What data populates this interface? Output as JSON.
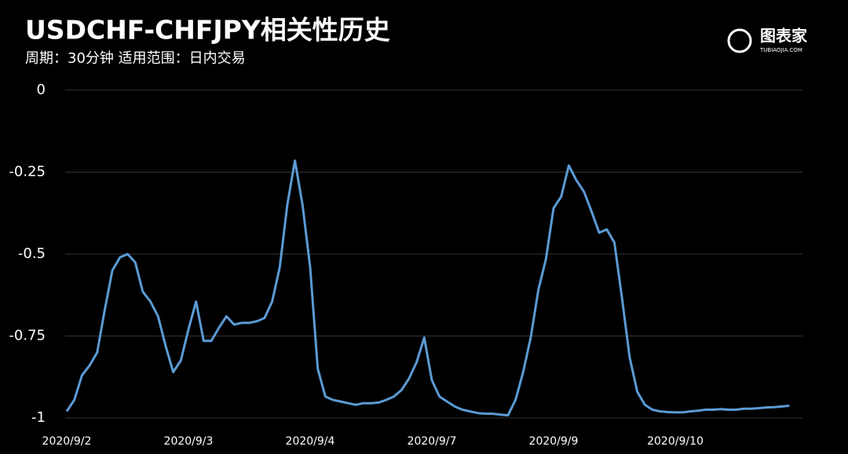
{
  "chart_data": {
    "type": "line",
    "title": "USDCHF-CHFJPY相关性历史",
    "subtitle": "周期：30分钟  适用范围：日内交易",
    "logo": "图表家",
    "logo_sub": "TUBIAOJIA.COM",
    "categories": [
      "2020/9/2",
      null,
      null,
      null,
      null,
      null,
      null,
      null,
      null,
      null,
      null,
      null,
      null,
      null,
      null,
      null,
      "2020/9/3",
      null,
      null,
      null,
      null,
      null,
      null,
      null,
      null,
      null,
      null,
      null,
      null,
      null,
      null,
      null,
      "2020/9/4",
      null,
      null,
      null,
      null,
      null,
      null,
      null,
      null,
      null,
      null,
      null,
      null,
      null,
      null,
      null,
      "2020/9/7",
      null,
      null,
      null,
      null,
      null,
      null,
      null,
      null,
      null,
      null,
      null,
      null,
      null,
      null,
      null,
      "2020/9/9",
      null,
      null,
      null,
      null,
      null,
      null,
      null,
      null,
      null,
      null,
      null,
      null,
      null,
      null,
      null,
      "2020/9/10",
      null,
      null,
      null,
      null,
      null,
      null,
      null,
      null,
      null,
      null,
      null,
      null,
      null,
      null,
      null
    ],
    "series": [
      {
        "name": "USDCHF-CHFJPY",
        "color": "#5b9bd5",
        "values": [
          -0.98,
          -0.945,
          -0.87,
          -0.84,
          -0.8,
          -0.67,
          -0.55,
          -0.51,
          -0.5,
          -0.525,
          -0.615,
          -0.645,
          -0.69,
          -0.78,
          -0.86,
          -0.825,
          -0.73,
          -0.645,
          -0.765,
          -0.765,
          -0.725,
          -0.69,
          -0.715,
          -0.71,
          -0.71,
          -0.705,
          -0.695,
          -0.645,
          -0.54,
          -0.35,
          -0.215,
          -0.35,
          -0.54,
          -0.85,
          -0.935,
          -0.945,
          -0.95,
          -0.955,
          -0.96,
          -0.955,
          -0.955,
          -0.953,
          -0.945,
          -0.935,
          -0.915,
          -0.88,
          -0.83,
          -0.755,
          -0.885,
          -0.935,
          -0.95,
          -0.965,
          -0.975,
          -0.98,
          -0.985,
          -0.987,
          -0.987,
          -0.99,
          -0.992,
          -0.945,
          -0.86,
          -0.755,
          -0.61,
          -0.515,
          -0.36,
          -0.325,
          -0.23,
          -0.275,
          -0.31,
          -0.37,
          -0.435,
          -0.425,
          -0.465,
          -0.635,
          -0.815,
          -0.92,
          -0.96,
          -0.975,
          -0.98,
          -0.982,
          -0.983,
          -0.983,
          -0.98,
          -0.978,
          -0.975,
          -0.975,
          -0.973,
          -0.975,
          -0.975,
          -0.972,
          -0.972,
          -0.97,
          -0.968,
          -0.967,
          -0.965,
          -0.963
        ]
      }
    ],
    "ylim": [
      -1,
      0
    ],
    "yticks": [
      0,
      -0.25,
      -0.5,
      -0.75,
      -1
    ],
    "grid": true
  }
}
